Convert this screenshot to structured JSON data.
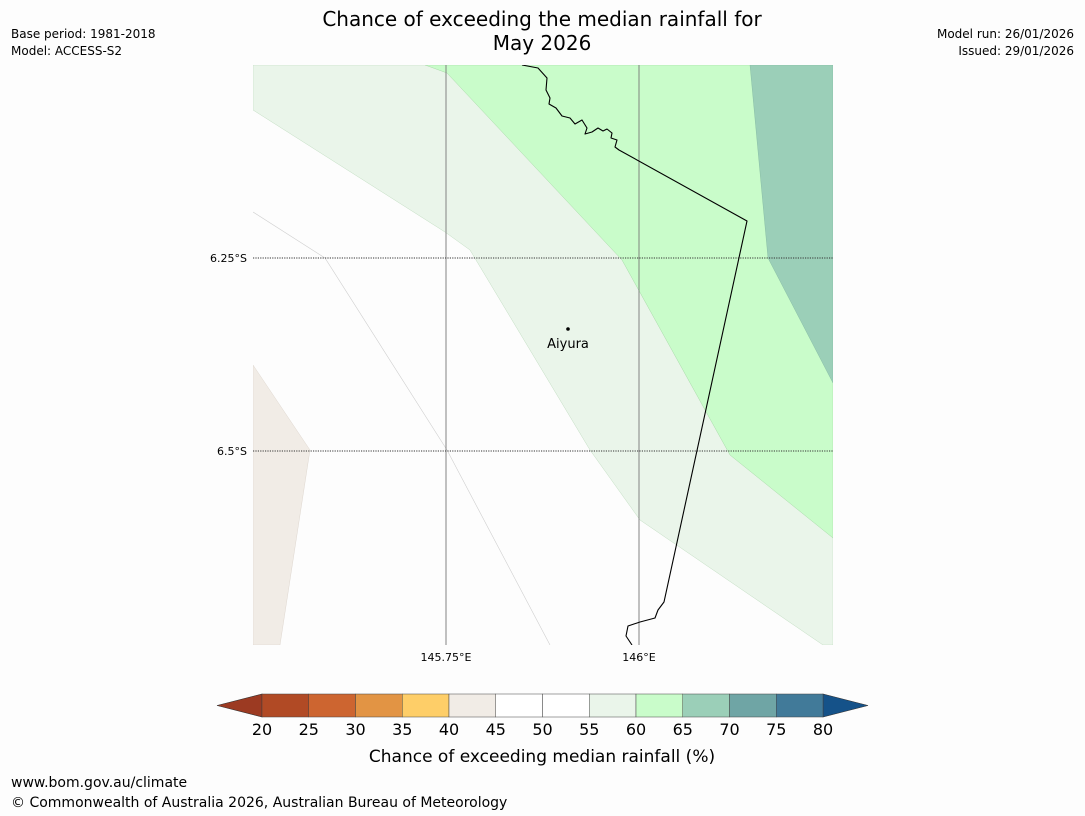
{
  "title": {
    "line1": "Chance of exceeding the median rainfall for",
    "line2": "May 2026"
  },
  "meta_left": {
    "base_period": "Base period: 1981-2018",
    "model": "Model: ACCESS-S2"
  },
  "meta_right": {
    "model_run": "Model run: 26/01/2026",
    "issued": "Issued: 29/01/2026"
  },
  "map": {
    "lat_labels": [
      "6.25°S",
      "6.5°S"
    ],
    "lon_labels": [
      "145.75°E",
      "146°E"
    ],
    "place": {
      "name": "Aiyura"
    }
  },
  "colorbar": {
    "title": "Chance of exceeding median rainfall (%)",
    "ticks": [
      "20",
      "25",
      "30",
      "35",
      "40",
      "45",
      "50",
      "55",
      "60",
      "65",
      "70",
      "75",
      "80"
    ],
    "colors": [
      "#b14a25",
      "#cd6530",
      "#e29444",
      "#fece68",
      "#f1ece6",
      "#ffffff",
      "#ffffff",
      "#eaf5ea",
      "#c9fcca",
      "#9bcfb8",
      "#6fa5a5",
      "#417a99"
    ],
    "under_color": "#9c3a22",
    "over_color": "#155289"
  },
  "footer": {
    "url": "www.bom.gov.au/climate",
    "copyright": "© Commonwealth of Australia 2026, Australian Bureau of Meteorology"
  }
}
